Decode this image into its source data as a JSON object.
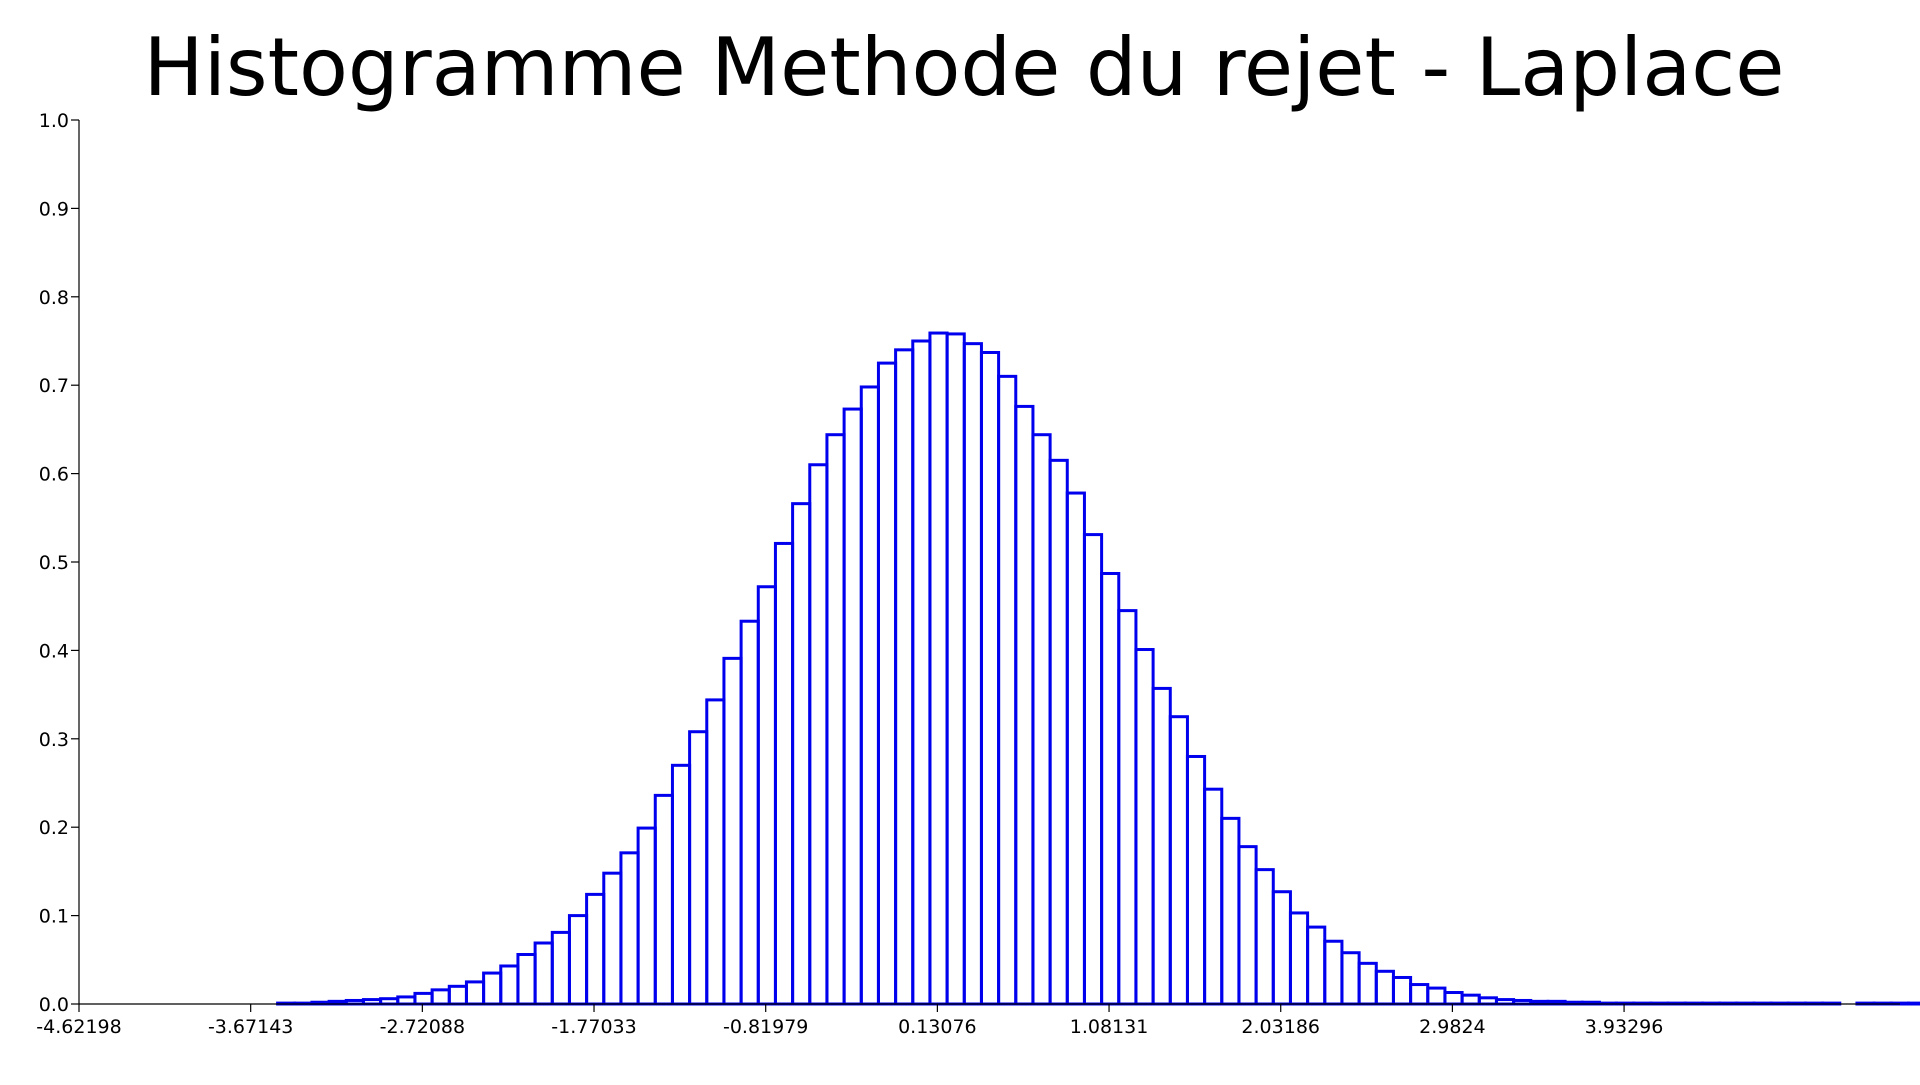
{
  "chart_data": {
    "type": "bar",
    "title": "Histogramme Methode du rejet - Laplace",
    "xlabel": "",
    "ylabel": "",
    "xlim": [
      -4.62198,
      5.35
    ],
    "ylim": [
      0.0,
      1.0
    ],
    "xticks": [
      "-4.62198",
      "-3.67143",
      "-2.72088",
      "-1.77033",
      "-0.81979",
      "0.13076",
      "1.08131",
      "2.03186",
      "2.9824",
      "3.93296"
    ],
    "xtick_values": [
      -4.62198,
      -3.67143,
      -2.72088,
      -1.77033,
      -0.81979,
      0.13076,
      1.08131,
      2.03186,
      2.9824,
      3.93296
    ],
    "yticks": [
      "0.0",
      "0.1",
      "0.2",
      "0.3",
      "0.4",
      "0.5",
      "0.6",
      "0.7",
      "0.8",
      "0.9",
      "1.0"
    ],
    "ytick_values": [
      0.0,
      0.1,
      0.2,
      0.3,
      0.4,
      0.5,
      0.6,
      0.7,
      0.8,
      0.9,
      1.0
    ],
    "bin_start": -3.5223,
    "bin_width": 0.09505,
    "values": [
      0.001,
      0.001,
      0.002,
      0.003,
      0.004,
      0.005,
      0.006,
      0.008,
      0.012,
      0.016,
      0.02,
      0.025,
      0.035,
      0.043,
      0.056,
      0.069,
      0.081,
      0.1,
      0.124,
      0.148,
      0.171,
      0.199,
      0.236,
      0.27,
      0.308,
      0.344,
      0.391,
      0.433,
      0.472,
      0.521,
      0.566,
      0.61,
      0.644,
      0.673,
      0.698,
      0.725,
      0.74,
      0.75,
      0.759,
      0.758,
      0.747,
      0.737,
      0.71,
      0.676,
      0.644,
      0.615,
      0.578,
      0.531,
      0.487,
      0.445,
      0.401,
      0.357,
      0.325,
      0.28,
      0.243,
      0.21,
      0.178,
      0.152,
      0.127,
      0.103,
      0.087,
      0.071,
      0.058,
      0.046,
      0.037,
      0.03,
      0.022,
      0.018,
      0.013,
      0.01,
      0.007,
      0.005,
      0.004,
      0.003,
      0.003,
      0.002,
      0.002,
      0.001,
      0.001,
      0.001,
      0.001,
      0.001,
      0.001,
      0.001,
      0.001,
      0.001,
      0.001,
      0.001,
      0.001,
      0.001,
      0.001,
      0.0,
      0.001,
      0.001,
      0.001,
      0.001
    ],
    "bar_color": "#0000ee",
    "grid": false
  }
}
